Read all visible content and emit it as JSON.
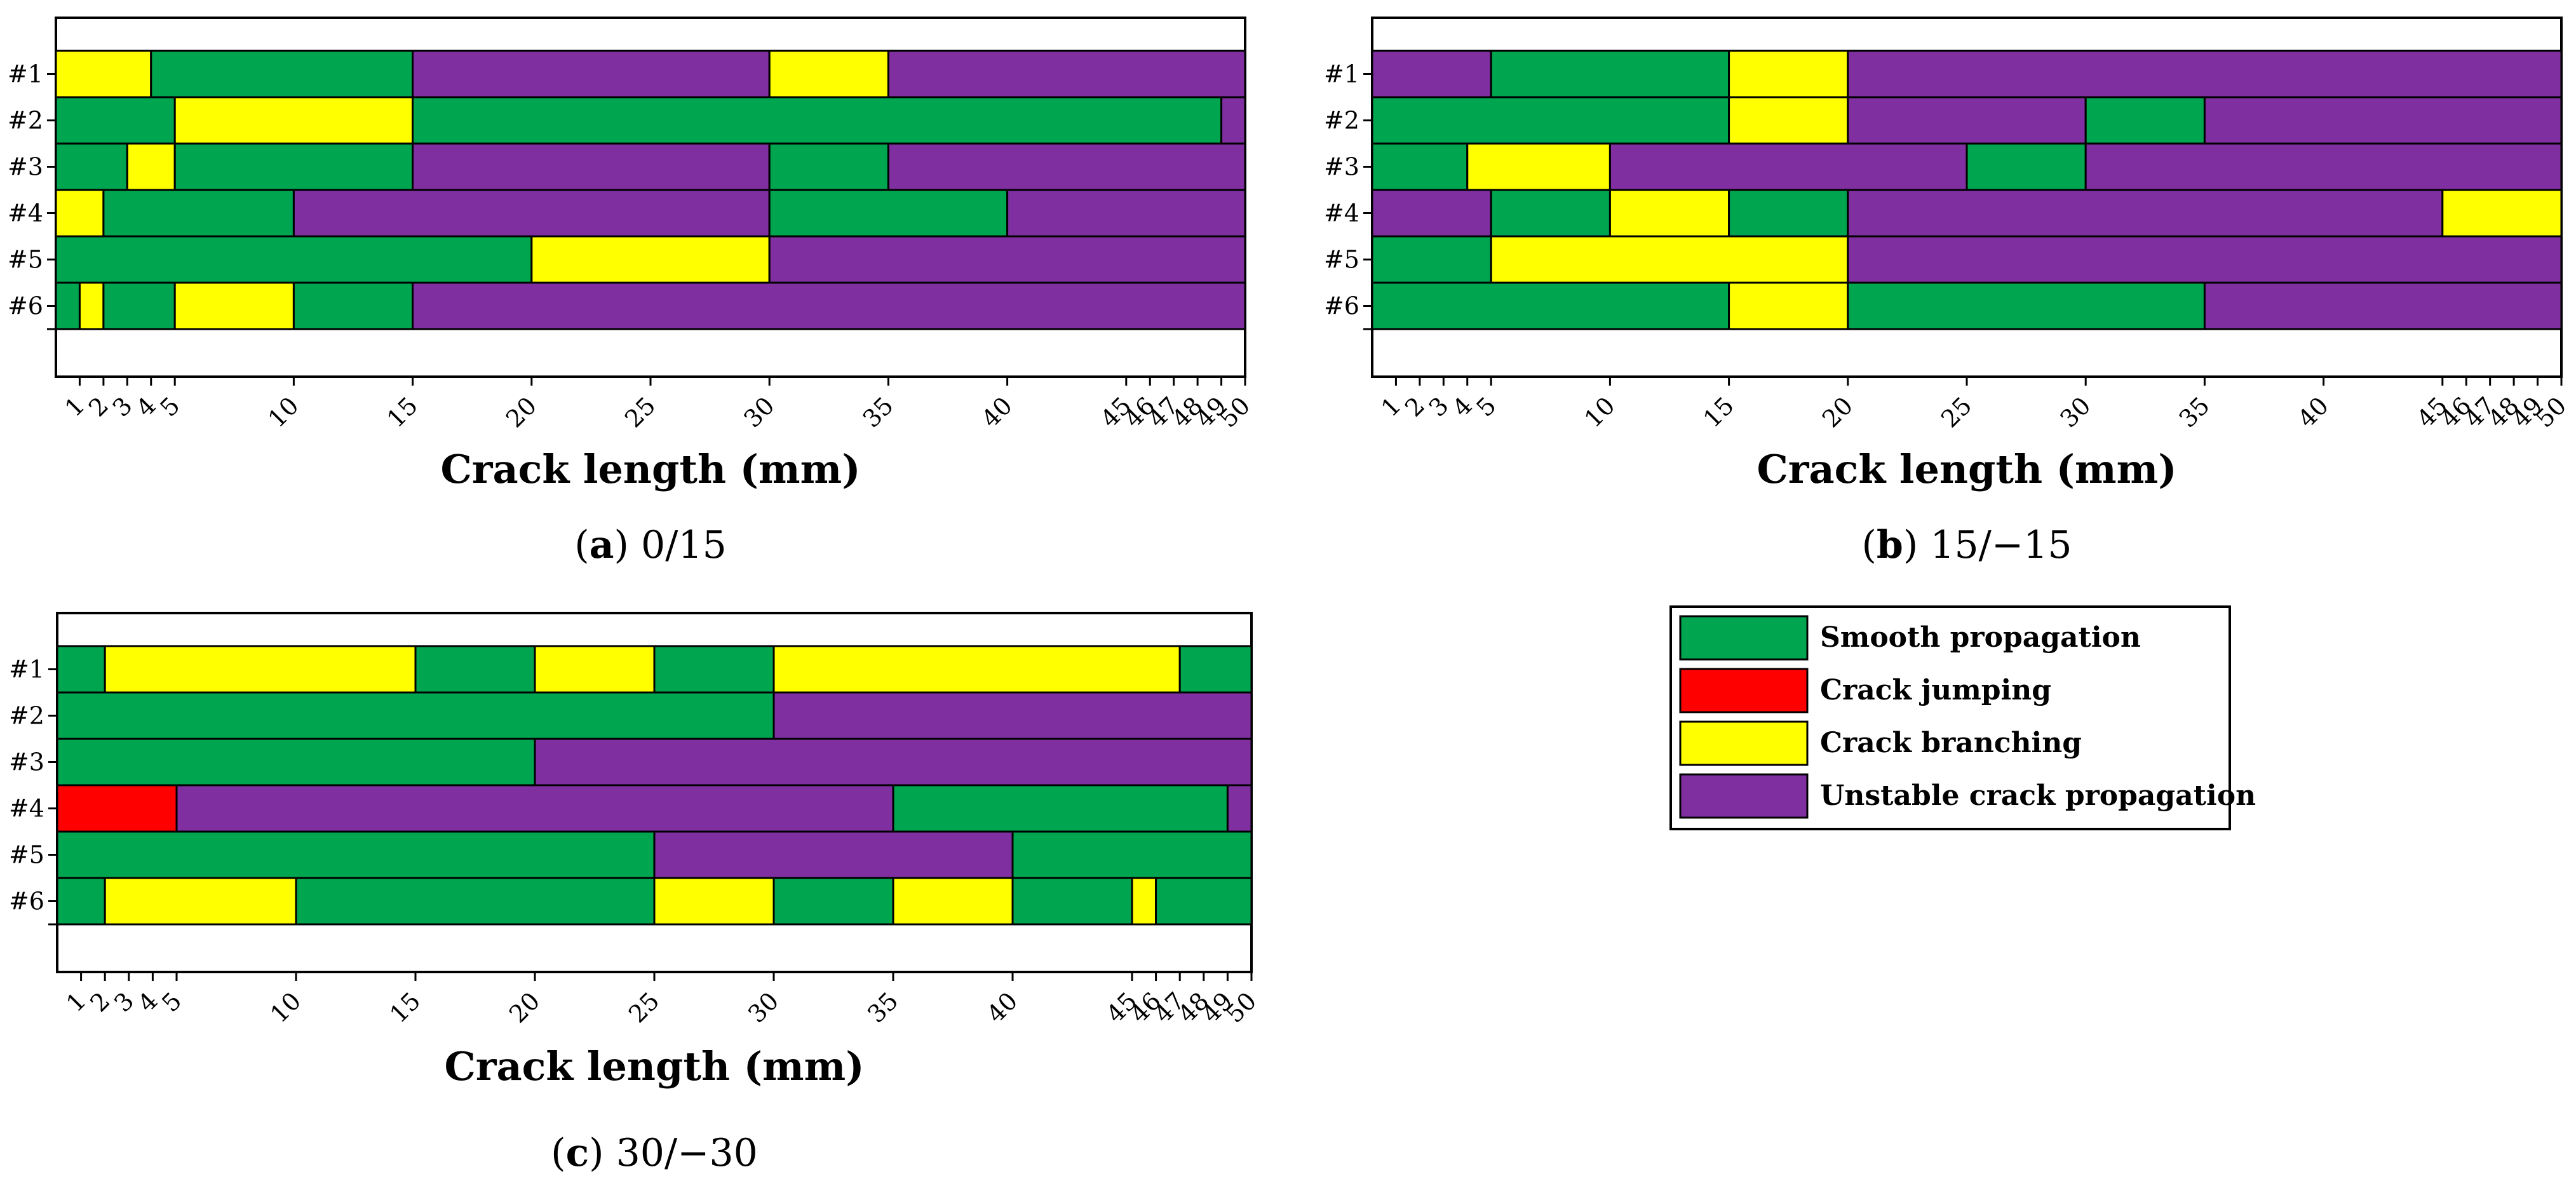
{
  "colors": {
    "Smooth propagation": "#00a550",
    "Crack jumping": "#ff0000",
    "Crack branching": "#ffff00",
    "Unstable crack propagation": "#7f2fa0"
  },
  "legend": {
    "items": [
      "Smooth propagation",
      "Crack jumping",
      "Crack branching",
      "Unstable crack propagation"
    ]
  },
  "chart_data": [
    {
      "type": "bar",
      "panel_letter": "a",
      "panel_caption": "0/15",
      "xlabel": "Crack length (mm)",
      "ylabel": "",
      "xlim": [
        0,
        50
      ],
      "tick_positions": [
        1,
        2,
        3,
        4,
        5,
        10,
        15,
        20,
        25,
        30,
        35,
        40,
        45,
        46,
        47,
        48,
        49,
        50
      ],
      "tick_labels": [
        "1",
        "2",
        "3",
        "4",
        "5",
        "10",
        "15",
        "20",
        "25",
        "30",
        "35",
        "40",
        "45",
        "46",
        "47",
        "48",
        "49",
        "50"
      ],
      "rows": [
        {
          "label": "#1",
          "segments": [
            {
              "start": 0,
              "end": 4,
              "mode": "Crack branching"
            },
            {
              "start": 4,
              "end": 15,
              "mode": "Smooth propagation"
            },
            {
              "start": 15,
              "end": 30,
              "mode": "Unstable crack propagation"
            },
            {
              "start": 30,
              "end": 35,
              "mode": "Crack branching"
            },
            {
              "start": 35,
              "end": 50,
              "mode": "Unstable crack propagation"
            }
          ]
        },
        {
          "label": "#2",
          "segments": [
            {
              "start": 0,
              "end": 5,
              "mode": "Smooth propagation"
            },
            {
              "start": 5,
              "end": 15,
              "mode": "Crack branching"
            },
            {
              "start": 15,
              "end": 49,
              "mode": "Smooth propagation"
            },
            {
              "start": 49,
              "end": 50,
              "mode": "Unstable crack propagation"
            }
          ]
        },
        {
          "label": "#3",
          "segments": [
            {
              "start": 0,
              "end": 3,
              "mode": "Smooth propagation"
            },
            {
              "start": 3,
              "end": 5,
              "mode": "Crack branching"
            },
            {
              "start": 5,
              "end": 15,
              "mode": "Smooth propagation"
            },
            {
              "start": 15,
              "end": 30,
              "mode": "Unstable crack propagation"
            },
            {
              "start": 30,
              "end": 35,
              "mode": "Smooth propagation"
            },
            {
              "start": 35,
              "end": 50,
              "mode": "Unstable crack propagation"
            }
          ]
        },
        {
          "label": "#4",
          "segments": [
            {
              "start": 0,
              "end": 2,
              "mode": "Crack branching"
            },
            {
              "start": 2,
              "end": 10,
              "mode": "Smooth propagation"
            },
            {
              "start": 10,
              "end": 30,
              "mode": "Unstable crack propagation"
            },
            {
              "start": 30,
              "end": 40,
              "mode": "Smooth propagation"
            },
            {
              "start": 40,
              "end": 50,
              "mode": "Unstable crack propagation"
            }
          ]
        },
        {
          "label": "#5",
          "segments": [
            {
              "start": 0,
              "end": 20,
              "mode": "Smooth propagation"
            },
            {
              "start": 20,
              "end": 30,
              "mode": "Crack branching"
            },
            {
              "start": 30,
              "end": 50,
              "mode": "Unstable crack propagation"
            }
          ]
        },
        {
          "label": "#6",
          "segments": [
            {
              "start": 0,
              "end": 1,
              "mode": "Smooth propagation"
            },
            {
              "start": 1,
              "end": 2,
              "mode": "Crack branching"
            },
            {
              "start": 2,
              "end": 5,
              "mode": "Smooth propagation"
            },
            {
              "start": 5,
              "end": 10,
              "mode": "Crack branching"
            },
            {
              "start": 10,
              "end": 15,
              "mode": "Smooth propagation"
            },
            {
              "start": 15,
              "end": 50,
              "mode": "Unstable crack propagation"
            }
          ]
        }
      ]
    },
    {
      "type": "bar",
      "panel_letter": "b",
      "panel_caption": "15/−15",
      "xlabel": "Crack length (mm)",
      "ylabel": "",
      "xlim": [
        0,
        50
      ],
      "tick_positions": [
        1,
        2,
        3,
        4,
        5,
        10,
        15,
        20,
        25,
        30,
        35,
        40,
        45,
        46,
        47,
        48,
        49,
        50
      ],
      "tick_labels": [
        "1",
        "2",
        "3",
        "4",
        "5",
        "10",
        "15",
        "20",
        "25",
        "30",
        "35",
        "40",
        "45",
        "46",
        "47",
        "48",
        "49",
        "50"
      ],
      "rows": [
        {
          "label": "#1",
          "segments": [
            {
              "start": 0,
              "end": 5,
              "mode": "Unstable crack propagation"
            },
            {
              "start": 5,
              "end": 15,
              "mode": "Smooth propagation"
            },
            {
              "start": 15,
              "end": 20,
              "mode": "Crack branching"
            },
            {
              "start": 20,
              "end": 50,
              "mode": "Unstable crack propagation"
            }
          ]
        },
        {
          "label": "#2",
          "segments": [
            {
              "start": 0,
              "end": 15,
              "mode": "Smooth propagation"
            },
            {
              "start": 15,
              "end": 20,
              "mode": "Crack branching"
            },
            {
              "start": 20,
              "end": 30,
              "mode": "Unstable crack propagation"
            },
            {
              "start": 30,
              "end": 35,
              "mode": "Smooth propagation"
            },
            {
              "start": 35,
              "end": 50,
              "mode": "Unstable crack propagation"
            }
          ]
        },
        {
          "label": "#3",
          "segments": [
            {
              "start": 0,
              "end": 4,
              "mode": "Smooth propagation"
            },
            {
              "start": 4,
              "end": 10,
              "mode": "Crack branching"
            },
            {
              "start": 10,
              "end": 25,
              "mode": "Unstable crack propagation"
            },
            {
              "start": 25,
              "end": 30,
              "mode": "Smooth propagation"
            },
            {
              "start": 30,
              "end": 50,
              "mode": "Unstable crack propagation"
            }
          ]
        },
        {
          "label": "#4",
          "segments": [
            {
              "start": 0,
              "end": 5,
              "mode": "Unstable crack propagation"
            },
            {
              "start": 5,
              "end": 10,
              "mode": "Smooth propagation"
            },
            {
              "start": 10,
              "end": 15,
              "mode": "Crack branching"
            },
            {
              "start": 15,
              "end": 20,
              "mode": "Smooth propagation"
            },
            {
              "start": 20,
              "end": 45,
              "mode": "Unstable crack propagation"
            },
            {
              "start": 45,
              "end": 50,
              "mode": "Crack branching"
            }
          ]
        },
        {
          "label": "#5",
          "segments": [
            {
              "start": 0,
              "end": 5,
              "mode": "Smooth propagation"
            },
            {
              "start": 5,
              "end": 20,
              "mode": "Crack branching"
            },
            {
              "start": 20,
              "end": 50,
              "mode": "Unstable crack propagation"
            }
          ]
        },
        {
          "label": "#6",
          "segments": [
            {
              "start": 0,
              "end": 15,
              "mode": "Smooth propagation"
            },
            {
              "start": 15,
              "end": 20,
              "mode": "Crack branching"
            },
            {
              "start": 20,
              "end": 35,
              "mode": "Smooth propagation"
            },
            {
              "start": 35,
              "end": 50,
              "mode": "Unstable crack propagation"
            }
          ]
        }
      ]
    },
    {
      "type": "bar",
      "panel_letter": "c",
      "panel_caption": "30/−30",
      "xlabel": "Crack length (mm)",
      "ylabel": "",
      "xlim": [
        0,
        50
      ],
      "tick_positions": [
        1,
        2,
        3,
        4,
        5,
        10,
        15,
        20,
        25,
        30,
        35,
        40,
        45,
        46,
        47,
        48,
        49,
        50
      ],
      "tick_labels": [
        "1",
        "2",
        "3",
        "4",
        "5",
        "10",
        "15",
        "20",
        "25",
        "30",
        "35",
        "40",
        "45",
        "46",
        "47",
        "48",
        "49",
        "50"
      ],
      "rows": [
        {
          "label": "#1",
          "segments": [
            {
              "start": 0,
              "end": 2,
              "mode": "Smooth propagation"
            },
            {
              "start": 2,
              "end": 15,
              "mode": "Crack branching"
            },
            {
              "start": 15,
              "end": 20,
              "mode": "Smooth propagation"
            },
            {
              "start": 20,
              "end": 25,
              "mode": "Crack branching"
            },
            {
              "start": 25,
              "end": 30,
              "mode": "Smooth propagation"
            },
            {
              "start": 30,
              "end": 47,
              "mode": "Crack branching"
            },
            {
              "start": 47,
              "end": 50,
              "mode": "Smooth propagation"
            }
          ]
        },
        {
          "label": "#2",
          "segments": [
            {
              "start": 0,
              "end": 30,
              "mode": "Smooth propagation"
            },
            {
              "start": 30,
              "end": 50,
              "mode": "Unstable crack propagation"
            }
          ]
        },
        {
          "label": "#3",
          "segments": [
            {
              "start": 0,
              "end": 20,
              "mode": "Smooth propagation"
            },
            {
              "start": 20,
              "end": 50,
              "mode": "Unstable crack propagation"
            }
          ]
        },
        {
          "label": "#4",
          "segments": [
            {
              "start": 0,
              "end": 5,
              "mode": "Crack jumping"
            },
            {
              "start": 5,
              "end": 35,
              "mode": "Unstable crack propagation"
            },
            {
              "start": 35,
              "end": 49,
              "mode": "Smooth propagation"
            },
            {
              "start": 49,
              "end": 50,
              "mode": "Unstable crack propagation"
            }
          ]
        },
        {
          "label": "#5",
          "segments": [
            {
              "start": 0,
              "end": 25,
              "mode": "Smooth propagation"
            },
            {
              "start": 25,
              "end": 40,
              "mode": "Unstable crack propagation"
            },
            {
              "start": 40,
              "end": 50,
              "mode": "Smooth propagation"
            }
          ]
        },
        {
          "label": "#6",
          "segments": [
            {
              "start": 0,
              "end": 2,
              "mode": "Smooth propagation"
            },
            {
              "start": 2,
              "end": 10,
              "mode": "Crack branching"
            },
            {
              "start": 10,
              "end": 25,
              "mode": "Smooth propagation"
            },
            {
              "start": 25,
              "end": 30,
              "mode": "Crack branching"
            },
            {
              "start": 30,
              "end": 35,
              "mode": "Smooth propagation"
            },
            {
              "start": 35,
              "end": 40,
              "mode": "Crack branching"
            },
            {
              "start": 40,
              "end": 45,
              "mode": "Smooth propagation"
            },
            {
              "start": 45,
              "end": 46,
              "mode": "Crack branching"
            },
            {
              "start": 46,
              "end": 50,
              "mode": "Smooth propagation"
            }
          ]
        }
      ]
    }
  ]
}
